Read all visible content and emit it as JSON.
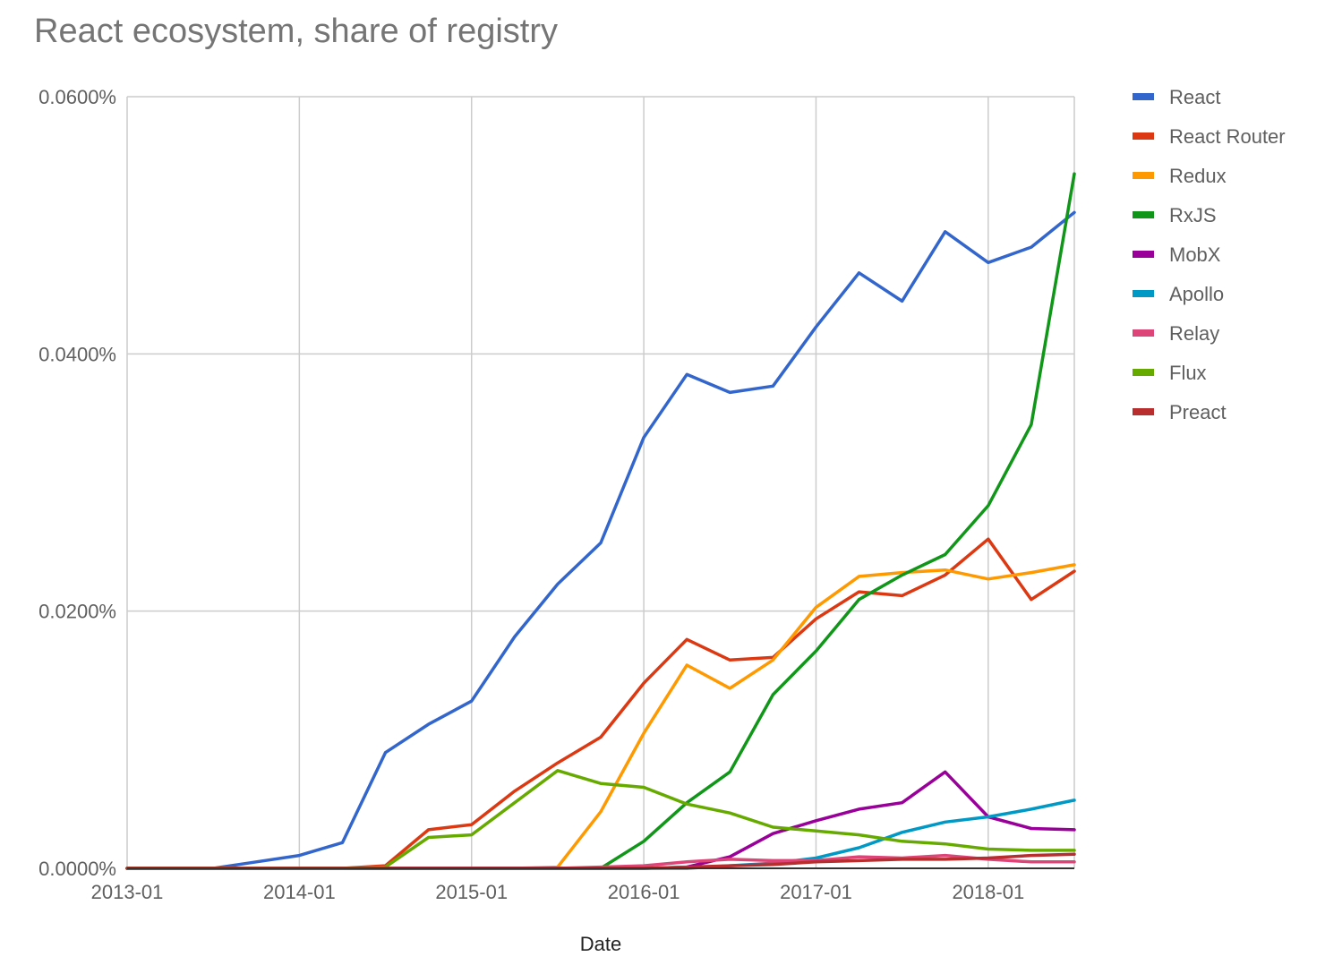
{
  "chart_data": {
    "type": "line",
    "title": "React ecosystem, share of registry",
    "xlabel": "Date",
    "ylabel": "",
    "x": [
      "2013-01",
      "2013-04",
      "2013-07",
      "2013-10",
      "2014-01",
      "2014-04",
      "2014-07",
      "2014-10",
      "2015-01",
      "2015-04",
      "2015-07",
      "2015-10",
      "2016-01",
      "2016-04",
      "2016-07",
      "2016-10",
      "2017-01",
      "2017-04",
      "2017-07",
      "2017-10",
      "2018-01",
      "2018-04",
      "2018-07"
    ],
    "x_tick_labels": [
      "2013-01",
      "2014-01",
      "2015-01",
      "2016-01",
      "2017-01",
      "2018-01"
    ],
    "y_tick_labels": [
      "0.0000%",
      "0.0200%",
      "0.0400%",
      "0.0600%"
    ],
    "y_ticks": [
      0,
      0.02,
      0.04,
      0.06
    ],
    "ylim": [
      0,
      0.06
    ],
    "grid": true,
    "legend_position": "right",
    "series": [
      {
        "name": "React",
        "color": "#3366cc",
        "values": [
          0,
          0,
          0,
          0.0005,
          0.001,
          0.002,
          0.009,
          0.0112,
          0.013,
          0.018,
          0.0221,
          0.0253,
          0.0335,
          0.0384,
          0.037,
          0.0375,
          0.0421,
          0.0463,
          0.0441,
          0.0495,
          0.0471,
          0.0483,
          0.051
        ]
      },
      {
        "name": "React Router",
        "color": "#dc3912",
        "values": [
          0,
          0,
          0,
          0,
          0,
          0,
          0.0002,
          0.003,
          0.0034,
          0.006,
          0.0082,
          0.0102,
          0.0144,
          0.0178,
          0.0162,
          0.0164,
          0.0194,
          0.0215,
          0.0212,
          0.0228,
          0.0256,
          0.0209,
          0.0231
        ]
      },
      {
        "name": "Redux",
        "color": "#ff9900",
        "values": [
          0,
          0,
          0,
          0,
          0,
          0,
          0,
          0,
          0,
          0,
          0.0001,
          0.0044,
          0.0105,
          0.0158,
          0.014,
          0.0162,
          0.0203,
          0.0227,
          0.023,
          0.0232,
          0.0225,
          0.023,
          0.0236
        ]
      },
      {
        "name": "RxJS",
        "color": "#109618",
        "values": [
          0,
          0,
          0,
          0,
          0,
          0,
          0,
          0,
          0,
          0,
          0,
          0,
          0.0021,
          0.0051,
          0.0075,
          0.0135,
          0.0169,
          0.0209,
          0.0228,
          0.0244,
          0.0282,
          0.0345,
          0.054
        ]
      },
      {
        "name": "MobX",
        "color": "#990099",
        "values": [
          0,
          0,
          0,
          0,
          0,
          0,
          0,
          0,
          0,
          0,
          0,
          0,
          0,
          0.0001,
          0.0009,
          0.0027,
          0.0037,
          0.0046,
          0.0051,
          0.0075,
          0.004,
          0.0031,
          0.003
        ]
      },
      {
        "name": "Apollo",
        "color": "#0099c6",
        "values": [
          0,
          0,
          0,
          0,
          0,
          0,
          0,
          0,
          0,
          0,
          0,
          0,
          0,
          0,
          0.0002,
          0.0004,
          0.0008,
          0.0016,
          0.0028,
          0.0036,
          0.004,
          0.0046,
          0.0053
        ]
      },
      {
        "name": "Relay",
        "color": "#dd4477",
        "values": [
          0,
          0,
          0,
          0,
          0,
          0,
          0,
          0,
          0,
          0,
          0,
          0.0001,
          0.0002,
          0.0005,
          0.0007,
          0.0006,
          0.0006,
          0.0009,
          0.0008,
          0.001,
          0.0007,
          0.0005,
          0.0005
        ]
      },
      {
        "name": "Flux",
        "color": "#66aa00",
        "values": [
          0,
          0,
          0,
          0,
          0,
          0,
          0.0001,
          0.0024,
          0.0026,
          0.0051,
          0.0076,
          0.0066,
          0.0063,
          0.005,
          0.0043,
          0.0032,
          0.0029,
          0.0026,
          0.0021,
          0.0019,
          0.0015,
          0.0014,
          0.0014
        ]
      },
      {
        "name": "Preact",
        "color": "#b82e2e",
        "values": [
          0,
          0,
          0,
          0,
          0,
          0,
          0,
          0,
          0,
          0,
          0,
          0,
          0,
          0.0001,
          0.0002,
          0.0003,
          0.0005,
          0.0006,
          0.0007,
          0.0007,
          0.0008,
          0.001,
          0.0011
        ]
      }
    ]
  }
}
